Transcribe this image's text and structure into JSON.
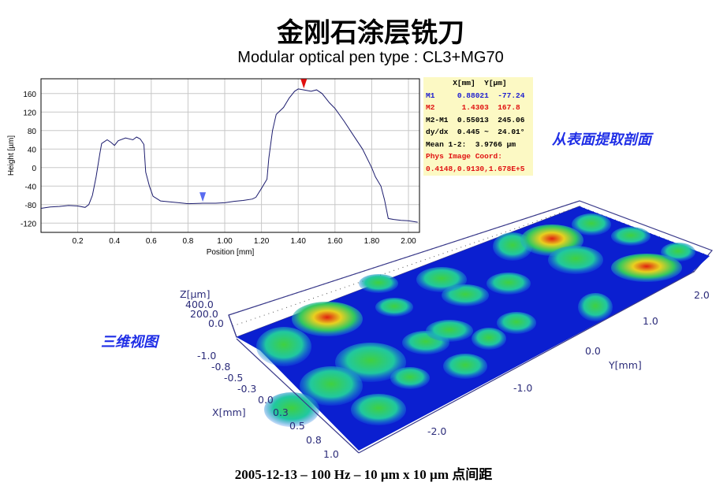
{
  "slide": {
    "title": "金刚石涂层铣刀",
    "subtitle": "Modular optical pen type : CL3+MG70",
    "note_profile": "从表面提取剖面",
    "note_3d": "三维视图",
    "caption": "2005-12-13 – 100 Hz – 10 µm x 10 µm 点间距"
  },
  "info_box": {
    "header": "      X[mm]  Y[µm]",
    "rows": [
      {
        "text": "M1     0.88021  -77.24",
        "color": "#1a1ad0"
      },
      {
        "text": "M2      1.4303  167.8",
        "color": "#e01010"
      },
      {
        "text": "M2-M1  0.55013  245.06",
        "color": "#000000"
      },
      {
        "text": "dy/dx  0.445 ~  24.01°",
        "color": "#000000"
      },
      {
        "text": "Mean 1-2:  3.9766 µm",
        "color": "#000000"
      },
      {
        "text": "Phys Image Coord:",
        "color": "#e01010"
      },
      {
        "text": "0.4148,0.9130,1.678E+5",
        "color": "#e01010"
      }
    ]
  },
  "chart_data": {
    "type": "line",
    "xlabel": "Position [mm]",
    "ylabel": "Height [µm]",
    "xlim": [
      0,
      2.06
    ],
    "ylim": [
      -140,
      192
    ],
    "xticks": [
      0.2,
      0.4,
      0.6,
      0.8,
      1.0,
      1.2,
      1.4,
      1.6,
      1.8,
      2.0
    ],
    "xtick_labels": [
      "0.2",
      "0.4",
      "0.6",
      "0.8",
      "1.00",
      "1.20",
      "1.40",
      "1.60",
      "1.80",
      "2.00"
    ],
    "yticks": [
      -120,
      -80,
      -40,
      0,
      40,
      80,
      120,
      160
    ],
    "ytick_labels": [
      "-120",
      "-80",
      "-40",
      "0",
      "40",
      "80",
      "120",
      "160"
    ],
    "grid": true,
    "line_color": "#1c1c6e",
    "x": [
      0.0,
      0.05,
      0.1,
      0.15,
      0.2,
      0.24,
      0.26,
      0.28,
      0.3,
      0.32,
      0.33,
      0.36,
      0.38,
      0.4,
      0.42,
      0.46,
      0.5,
      0.52,
      0.54,
      0.56,
      0.57,
      0.59,
      0.61,
      0.65,
      0.7,
      0.75,
      0.8,
      0.88,
      0.95,
      1.0,
      1.05,
      1.1,
      1.15,
      1.17,
      1.2,
      1.23,
      1.24,
      1.26,
      1.28,
      1.32,
      1.35,
      1.38,
      1.4,
      1.43,
      1.47,
      1.5,
      1.53,
      1.57,
      1.6,
      1.65,
      1.7,
      1.75,
      1.8,
      1.82,
      1.85,
      1.87,
      1.89,
      1.92,
      1.96,
      2.0,
      2.05
    ],
    "y": [
      -88,
      -85,
      -84,
      -82,
      -83,
      -86,
      -80,
      -60,
      -20,
      30,
      52,
      60,
      55,
      48,
      58,
      64,
      60,
      66,
      62,
      50,
      -10,
      -40,
      -62,
      -72,
      -74,
      -76,
      -78,
      -77,
      -77,
      -76,
      -73,
      -71,
      -68,
      -64,
      -45,
      -25,
      20,
      80,
      115,
      130,
      150,
      165,
      170,
      168,
      165,
      168,
      160,
      140,
      128,
      100,
      70,
      40,
      0,
      -20,
      -40,
      -70,
      -110,
      -112,
      -114,
      -115,
      -118
    ],
    "markers": [
      {
        "name": "M1",
        "x": 0.88021,
        "y": -77.24,
        "color": "#5a6cf0"
      },
      {
        "name": "M2",
        "x": 1.4303,
        "y": 167.8,
        "color": "#e01010"
      }
    ]
  },
  "surface_3d": {
    "z_label": "Z[µm]",
    "z_ticks": [
      "400.0",
      "200.0",
      "0.0"
    ],
    "x_label": "X[mm]",
    "x_ticks": [
      "-1.0",
      "-0.8",
      "-0.5",
      "-0.3",
      "0.0",
      "0.3",
      "0.5",
      "0.8",
      "1.0"
    ],
    "y_label": "Y[mm]",
    "y_ticks": [
      "2.0",
      "1.0",
      "0.0",
      "-1.0",
      "-2.0"
    ],
    "colors": [
      "#0a1ed8",
      "#20c8e8",
      "#30d060",
      "#e8e020",
      "#e02010"
    ]
  }
}
